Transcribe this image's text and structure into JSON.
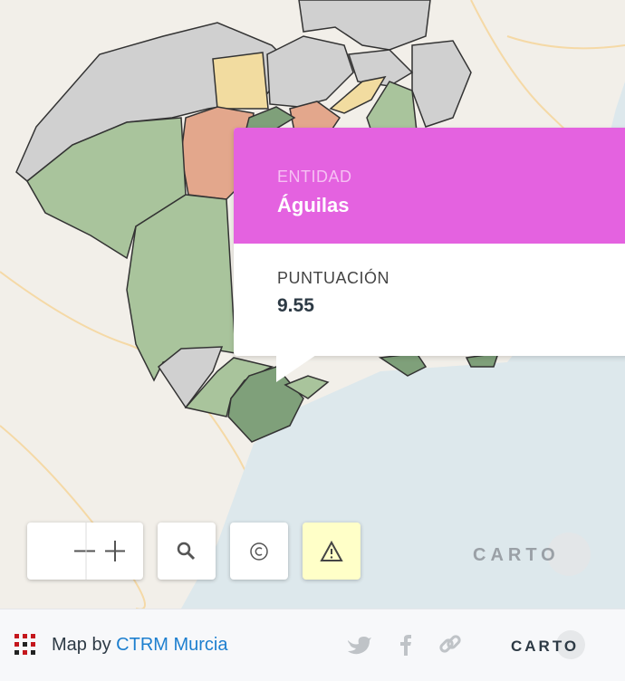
{
  "popup": {
    "field_label": "ENTIDAD",
    "field_value": "Águilas",
    "score_label": "PUNTUACIÓN",
    "score_value": 9.55
  },
  "map": {
    "watermark": "CARTO"
  },
  "footer": {
    "prefix": "Map by",
    "author": "CTRM Murcia",
    "logo": "CARTO"
  }
}
